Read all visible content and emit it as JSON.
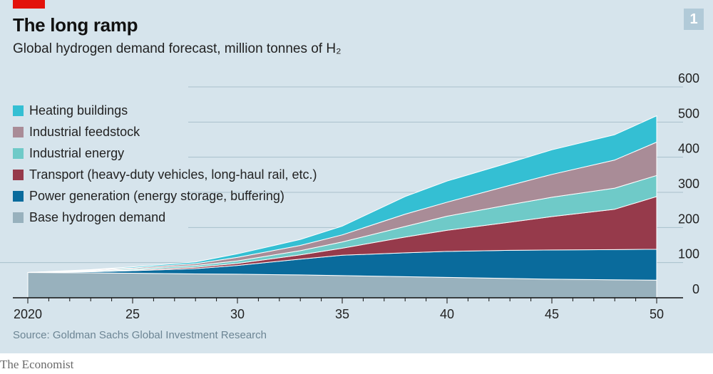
{
  "header": {
    "title": "The long ramp",
    "subtitle": "Global hydrogen demand forecast, million tonnes of H₂",
    "chart_number": "1"
  },
  "footer": {
    "source": "Source: Goldman Sachs Global Investment Research",
    "brand": "The Economist"
  },
  "colors": {
    "panel_bg": "#d6e4ec",
    "accent_red": "#e3120b",
    "grid": "#a9bfcc"
  },
  "chart_data": {
    "type": "area",
    "stacked": true,
    "title": "The long ramp",
    "subtitle": "Global hydrogen demand forecast, million tonnes of H₂",
    "xlabel": "",
    "ylabel": "million tonnes of H₂",
    "x": [
      2020,
      2023,
      2025,
      2028,
      2030,
      2033,
      2035,
      2038,
      2040,
      2043,
      2045,
      2048,
      2050
    ],
    "xlim": [
      2020,
      2050
    ],
    "ylim": [
      0,
      600
    ],
    "x_ticks": [
      2020,
      2025,
      2030,
      2035,
      2040,
      2045,
      2050
    ],
    "x_tick_labels": [
      "2020",
      "25",
      "30",
      "35",
      "40",
      "45",
      "50"
    ],
    "y_ticks": [
      0,
      100,
      200,
      300,
      400,
      500,
      600
    ],
    "y_tick_labels": [
      "0",
      "100",
      "200",
      "300",
      "400",
      "500",
      "600"
    ],
    "grid": true,
    "legend_position": "top-left",
    "series": [
      {
        "name": "Base hydrogen demand",
        "color": "#98b1bd",
        "values": [
          72,
          71,
          70,
          68,
          67,
          65,
          63,
          60,
          58,
          55,
          53,
          51,
          50
        ]
      },
      {
        "name": "Power generation (energy storage, buffering)",
        "color": "#0a6b9c",
        "values": [
          0,
          3,
          7,
          15,
          25,
          45,
          58,
          68,
          74,
          80,
          83,
          86,
          88
        ]
      },
      {
        "name": "Transport (heavy-duty vehicles, long-haul rail, etc.)",
        "color": "#963a4b",
        "values": [
          0,
          1,
          2,
          4,
          6,
          12,
          20,
          45,
          60,
          80,
          95,
          115,
          150
        ]
      },
      {
        "name": "Industrial energy",
        "color": "#6fcac8",
        "values": [
          0,
          2,
          3,
          5,
          7,
          12,
          18,
          30,
          40,
          50,
          55,
          60,
          60
        ]
      },
      {
        "name": "Industrial feedstock",
        "color": "#a98c97",
        "values": [
          0,
          2,
          3,
          5,
          10,
          15,
          20,
          35,
          40,
          55,
          65,
          80,
          95
        ]
      },
      {
        "name": "Heating buildings",
        "color": "#34bfd3",
        "values": [
          0,
          1,
          3,
          5,
          10,
          17,
          25,
          50,
          60,
          65,
          70,
          72,
          75
        ]
      }
    ]
  }
}
